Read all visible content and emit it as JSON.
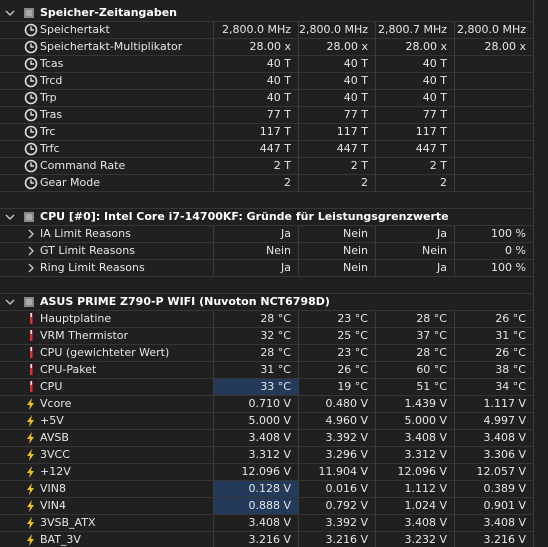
{
  "sections": [
    {
      "title": "Speicher-Zeitangaben",
      "icon": "clock",
      "rows": [
        {
          "label": "Speichertakt",
          "values": [
            "2,800.0 MHz",
            "2,800.0 MHz",
            "2,800.7 MHz",
            "2,800.0 MHz"
          ]
        },
        {
          "label": "Speichertakt-Multiplikator",
          "values": [
            "28.00 x",
            "28.00 x",
            "28.00 x",
            "28.00 x"
          ]
        },
        {
          "label": "Tcas",
          "values": [
            "40 T",
            "40 T",
            "40 T"
          ]
        },
        {
          "label": "Trcd",
          "values": [
            "40 T",
            "40 T",
            "40 T"
          ]
        },
        {
          "label": "Trp",
          "values": [
            "40 T",
            "40 T",
            "40 T"
          ]
        },
        {
          "label": "Tras",
          "values": [
            "77 T",
            "77 T",
            "77 T"
          ]
        },
        {
          "label": "Trc",
          "values": [
            "117 T",
            "117 T",
            "117 T"
          ]
        },
        {
          "label": "Trfc",
          "values": [
            "447 T",
            "447 T",
            "447 T"
          ]
        },
        {
          "label": "Command Rate",
          "values": [
            "2 T",
            "2 T",
            "2 T"
          ]
        },
        {
          "label": "Gear Mode",
          "values": [
            "2",
            "2",
            "2"
          ]
        }
      ]
    },
    {
      "title": "CPU [#0]: Intel Core i7-14700KF: Gründe für Leistungsgrenzwerte",
      "icon": "chevron",
      "rows": [
        {
          "label": "IA Limit Reasons",
          "values": [
            "Ja",
            "Nein",
            "Ja",
            "100 %"
          ]
        },
        {
          "label": "GT Limit Reasons",
          "values": [
            "Nein",
            "Nein",
            "Nein",
            "0 %"
          ]
        },
        {
          "label": "Ring Limit Reasons",
          "values": [
            "Ja",
            "Nein",
            "Ja",
            "100 %"
          ]
        }
      ]
    },
    {
      "title": "ASUS PRIME Z790-P WIFI (Nuvoton NCT6798D)",
      "icon": "thermo",
      "rows": [
        {
          "label": "Hauptplatine",
          "values": [
            "28 °C",
            "23 °C",
            "28 °C",
            "26 °C"
          ]
        },
        {
          "label": "VRM Thermistor",
          "values": [
            "32 °C",
            "25 °C",
            "37 °C",
            "31 °C"
          ]
        },
        {
          "label": "CPU (gewichteter Wert)",
          "values": [
            "28 °C",
            "23 °C",
            "28 °C",
            "26 °C"
          ]
        },
        {
          "label": "CPU-Paket",
          "values": [
            "31 °C",
            "26 °C",
            "60 °C",
            "38 °C"
          ]
        },
        {
          "label": "CPU",
          "values": [
            "33 °C",
            "19 °C",
            "51 °C",
            "34 °C"
          ],
          "highlighted": true
        },
        {
          "label": "Vcore",
          "values": [
            "0.710 V",
            "0.480 V",
            "1.439 V",
            "1.117 V"
          ],
          "icon": "bolt"
        },
        {
          "label": "+5V",
          "values": [
            "5.000 V",
            "4.960 V",
            "5.000 V",
            "4.997 V"
          ],
          "icon": "bolt"
        },
        {
          "label": "AVSB",
          "values": [
            "3.408 V",
            "3.392 V",
            "3.408 V",
            "3.408 V"
          ],
          "icon": "bolt"
        },
        {
          "label": "3VCC",
          "values": [
            "3.312 V",
            "3.296 V",
            "3.312 V",
            "3.306 V"
          ],
          "icon": "bolt"
        },
        {
          "label": "+12V",
          "values": [
            "12.096 V",
            "11.904 V",
            "12.096 V",
            "12.057 V"
          ],
          "icon": "bolt"
        },
        {
          "label": "VIN8",
          "values": [
            "0.128 V",
            "0.016 V",
            "1.112 V",
            "0.389 V"
          ],
          "icon": "bolt",
          "highlighted": true
        },
        {
          "label": "VIN4",
          "values": [
            "0.888 V",
            "0.792 V",
            "1.024 V",
            "0.901 V"
          ],
          "icon": "bolt",
          "highlighted": true
        },
        {
          "label": "3VSB_ATX",
          "values": [
            "3.408 V",
            "3.392 V",
            "3.408 V",
            "3.408 V"
          ],
          "icon": "bolt"
        },
        {
          "label": "BAT_3V",
          "values": [
            "3.216 V",
            "3.216 V",
            "3.232 V",
            "3.216 V"
          ],
          "icon": "bolt"
        }
      ]
    }
  ]
}
